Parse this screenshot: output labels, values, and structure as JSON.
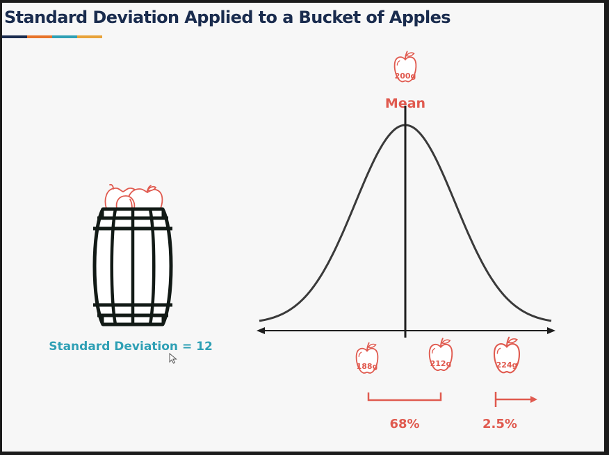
{
  "title": "Standard Deviation Applied to a Bucket of Apples",
  "colors": {
    "title": "#1a2c4e",
    "accent_red": "#e05a4f",
    "accent_teal": "#2fa0b5",
    "curve": "#3a3a3a",
    "barrel": "#121a16",
    "underline": [
      "#1a2c4e",
      "#e8742a",
      "#2fa0b5",
      "#e8a33a"
    ]
  },
  "mean": {
    "label": "Mean",
    "apple_weight": "200g"
  },
  "barrel": {
    "icon": "barrel-with-apples-icon",
    "caption": "Standard Deviation = 12"
  },
  "markers": [
    {
      "weight": "188g",
      "icon": "apple-icon"
    },
    {
      "weight": "212g",
      "icon": "apple-icon"
    },
    {
      "weight": "224g",
      "icon": "apple-icon"
    }
  ],
  "ranges": {
    "within_one_sd": "68%",
    "beyond_two_sd": "2.5%"
  }
}
